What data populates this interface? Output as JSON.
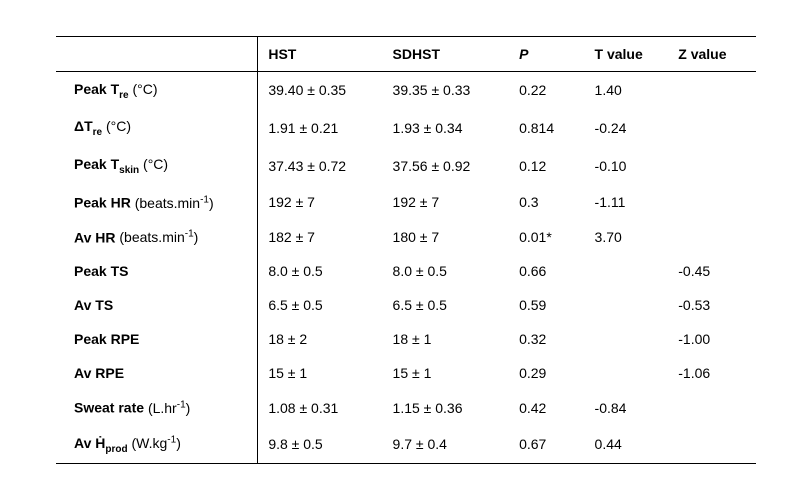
{
  "columns": {
    "label": "",
    "hst": "HST",
    "sdhst": "SDHST",
    "p": "P",
    "t": "T value",
    "z": "Z value"
  },
  "rows": [
    {
      "label_html": "<span class='lbl-main'>Peak T<sub>re</sub></span> <span class='lbl-unit'>(°C)</span>",
      "hst": "39.40 ± 0.35",
      "sdhst": "39.35 ± 0.33",
      "p": "0.22",
      "t": "1.40",
      "z": ""
    },
    {
      "label_html": "<span class='lbl-main'>ΔT<sub>re</sub></span> <span class='lbl-unit'>(°C)</span>",
      "hst": "1.91 ± 0.21",
      "sdhst": "1.93 ± 0.34",
      "p": "0.814",
      "t": "-0.24",
      "z": ""
    },
    {
      "label_html": "<span class='lbl-main'>Peak T<sub>skin</sub></span> <span class='lbl-unit'>(°C)</span>",
      "hst": "37.43 ± 0.72",
      "sdhst": "37.56 ± 0.92",
      "p": "0.12",
      "t": "-0.10",
      "z": ""
    },
    {
      "label_html": "<span class='lbl-main'>Peak HR</span> <span class='lbl-unit'>(beats.min<sup>-1</sup>)</span>",
      "hst": "192 ± 7",
      "sdhst": "192 ± 7",
      "p": "0.3",
      "t": "-1.11",
      "z": ""
    },
    {
      "label_html": "<span class='lbl-main'>Av HR</span> <span class='lbl-unit'>(beats.min<sup>-1</sup>)</span>",
      "hst": "182 ± 7",
      "sdhst": "180 ± 7",
      "p": "0.01*",
      "t": "3.70",
      "z": ""
    },
    {
      "label_html": "<span class='lbl-main'>Peak TS</span>",
      "hst": "8.0 ± 0.5",
      "sdhst": "8.0 ± 0.5",
      "p": "0.66",
      "t": "",
      "z": "-0.45"
    },
    {
      "label_html": "<span class='lbl-main'>Av TS</span>",
      "hst": "6.5 ± 0.5",
      "sdhst": "6.5 ± 0.5",
      "p": "0.59",
      "t": "",
      "z": "-0.53"
    },
    {
      "label_html": "<span class='lbl-main'>Peak RPE</span>",
      "hst": "18 ± 2",
      "sdhst": "18 ± 1",
      "p": "0.32",
      "t": "",
      "z": "-1.00"
    },
    {
      "label_html": "<span class='lbl-main'>Av RPE</span>",
      "hst": "15 ± 1",
      "sdhst": "15 ± 1",
      "p": "0.29",
      "t": "",
      "z": "-1.06"
    },
    {
      "label_html": "<span class='lbl-main'>Sweat rate</span> <span class='lbl-unit'>(L.hr<sup>-1</sup>)</span>",
      "hst": "1.08 ± 0.31",
      "sdhst": "1.15 ± 0.36",
      "p": "0.42",
      "t": "-0.84",
      "z": ""
    },
    {
      "label_html": "<span class='lbl-main'>Av Ḣ<sub>prod</sub></span> <span class='lbl-unit'>(W.kg<sup>-1</sup>)</span>",
      "hst": "9.8 ± 0.5",
      "sdhst": "9.7 ± 0.4",
      "p": "0.67",
      "t": "0.44",
      "z": ""
    }
  ]
}
